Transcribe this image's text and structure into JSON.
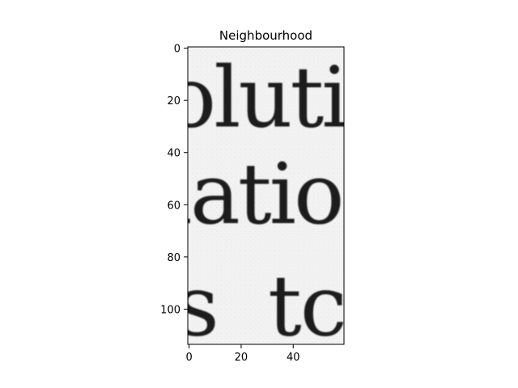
{
  "chart_data": {
    "type": "heatmap",
    "title": "Neighbourhood",
    "xlabel": "",
    "ylabel": "",
    "xlim": [
      -0.5,
      59.5
    ],
    "ylim": [
      113.5,
      -0.5
    ],
    "x_ticks": [
      0,
      20,
      40
    ],
    "y_ticks": [
      0,
      20,
      40,
      60,
      80,
      100
    ],
    "grid": false,
    "legend": "none",
    "colormap": "gray",
    "image_content": "grayscale scan of printed serif text",
    "text_lines": [
      {
        "text": "oluti",
        "baseline_row": 30
      },
      {
        "text": "latio",
        "baseline_row": 67
      },
      {
        "text": "s  tc",
        "baseline_row": 110
      }
    ],
    "colors": {
      "background": "#f2f2f2",
      "ink": "#1a1a1a",
      "axis": "#000000"
    }
  }
}
